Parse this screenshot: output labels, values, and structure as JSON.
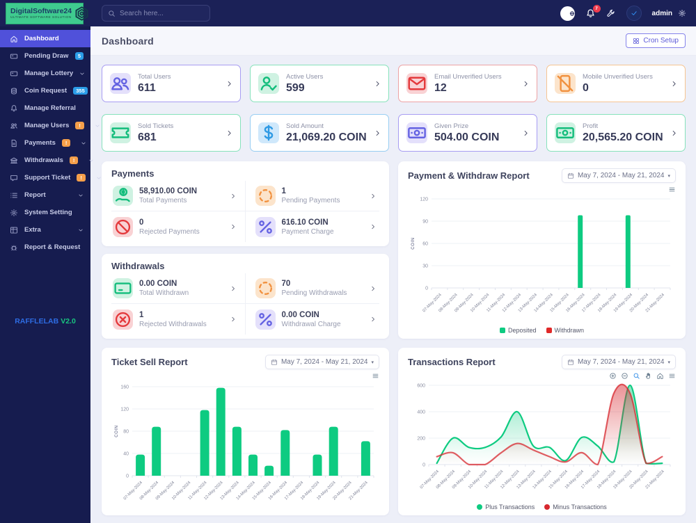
{
  "header": {
    "logo_title": "DigitalSoftware24",
    "logo_subtitle": "ULTIMATE SOFTWARE SOLUTION",
    "search_placeholder": "Search here...",
    "notification_count": "7",
    "user_name": "admin"
  },
  "sidebar": {
    "items": [
      {
        "label": "Dashboard",
        "icon": "home",
        "active": true
      },
      {
        "label": "Pending Draw",
        "icon": "card",
        "badge": "5",
        "badge_type": "info"
      },
      {
        "label": "Manage Lottery",
        "icon": "card",
        "chevron": true
      },
      {
        "label": "Coin Request",
        "icon": "coins",
        "badge": "355",
        "badge_type": "info"
      },
      {
        "label": "Manage Referral",
        "icon": "bell"
      },
      {
        "label": "Manage Users",
        "icon": "users",
        "badge": "!",
        "badge_type": "warn",
        "chevron": true
      },
      {
        "label": "Payments",
        "icon": "file",
        "badge": "!",
        "badge_type": "warn",
        "chevron": true
      },
      {
        "label": "Withdrawals",
        "icon": "bank",
        "badge": "!",
        "badge_type": "warn",
        "chevron": true
      },
      {
        "label": "Support Ticket",
        "icon": "chat",
        "badge": "!",
        "badge_type": "warn",
        "chevron": true
      },
      {
        "label": "Report",
        "icon": "list",
        "chevron": true
      },
      {
        "label": "System Setting",
        "icon": "gear"
      },
      {
        "label": "Extra",
        "icon": "grid",
        "chevron": true
      },
      {
        "label": "Report & Request",
        "icon": "bug"
      }
    ],
    "footer_brand": "RAFFLELAB",
    "footer_version": "V2.0"
  },
  "page": {
    "title": "Dashboard",
    "cron_button": "Cron Setup"
  },
  "stat_cards": [
    {
      "label": "Total Users",
      "value": "611",
      "icon": "users-group",
      "color": "purple"
    },
    {
      "label": "Active Users",
      "value": "599",
      "icon": "user-check",
      "color": "green"
    },
    {
      "label": "Email Unverified Users",
      "value": "12",
      "icon": "mail",
      "color": "red"
    },
    {
      "label": "Mobile Unverified Users",
      "value": "0",
      "icon": "phone-slash",
      "color": "orange"
    },
    {
      "label": "Sold Tickets",
      "value": "681",
      "icon": "ticket",
      "color": "green"
    },
    {
      "label": "Sold Amount",
      "value": "21,069.20 COIN",
      "icon": "dollar",
      "color": "blue"
    },
    {
      "label": "Given Prize",
      "value": "504.00 COIN",
      "icon": "cash",
      "color": "purple"
    },
    {
      "label": "Profit",
      "value": "20,565.20 COIN",
      "icon": "cash",
      "color": "green"
    }
  ],
  "payments_panel": {
    "title": "Payments",
    "items": [
      {
        "value": "58,910.00 COIN",
        "label": "Total Payments",
        "icon": "hand-dollar",
        "color": "green"
      },
      {
        "value": "1",
        "label": "Pending Payments",
        "icon": "spinner",
        "color": "orange"
      },
      {
        "value": "0",
        "label": "Rejected Payments",
        "icon": "ban",
        "color": "red"
      },
      {
        "value": "616.10 COIN",
        "label": "Payment Charge",
        "icon": "percent",
        "color": "purple"
      }
    ]
  },
  "withdrawals_panel": {
    "title": "Withdrawals",
    "items": [
      {
        "value": "0.00 COIN",
        "label": "Total Withdrawn",
        "icon": "wallet-card",
        "color": "green"
      },
      {
        "value": "70",
        "label": "Pending Withdrawals",
        "icon": "spinner",
        "color": "orange"
      },
      {
        "value": "1",
        "label": "Rejected Withdrawals",
        "icon": "circle-x",
        "color": "red"
      },
      {
        "value": "0.00 COIN",
        "label": "Withdrawal Charge",
        "icon": "percent",
        "color": "purple"
      }
    ]
  },
  "chart_data": [
    {
      "id": "payment_withdraw",
      "type": "bar",
      "title": "Payment & Withdraw Report",
      "date_range": "May 7, 2024 - May 21, 2024",
      "ylabel": "COIN",
      "ylim": [
        0,
        120
      ],
      "yticks": [
        120,
        90,
        60,
        30,
        0
      ],
      "grid": true,
      "legend_position": "bottom",
      "categories": [
        "07-May-2024",
        "08-May-2024",
        "09-May-2024",
        "10-May-2024",
        "11-May-2024",
        "12-May-2024",
        "13-May-2024",
        "14-May-2024",
        "15-May-2024",
        "16-May-2024",
        "17-May-2024",
        "18-May-2024",
        "19-May-2024",
        "20-May-2024",
        "21-May-2024"
      ],
      "series": [
        {
          "name": "Deposited",
          "color": "#0ecb81",
          "values": [
            0,
            0,
            0,
            0,
            0,
            0,
            0,
            0,
            0,
            98,
            0,
            0,
            98,
            0,
            0
          ]
        },
        {
          "name": "Withdrawn",
          "color": "#e02828",
          "values": [
            0,
            0,
            0,
            0,
            0,
            0,
            0,
            0,
            0,
            0,
            0,
            0,
            0,
            0,
            0
          ]
        }
      ]
    },
    {
      "id": "ticket_sell",
      "type": "bar",
      "title": "Ticket Sell Report",
      "date_range": "May 7, 2024 - May 21, 2024",
      "ylabel": "COIN",
      "ylim": [
        0,
        160
      ],
      "yticks": [
        160,
        120,
        80,
        40,
        0
      ],
      "grid": true,
      "legend_position": "none",
      "categories": [
        "07-May-2024",
        "08-May-2024",
        "09-May-2024",
        "10-May-2024",
        "11-May-2024",
        "12-May-2024",
        "13-May-2024",
        "14-May-2024",
        "15-May-2024",
        "16-May-2024",
        "17-May-2024",
        "18-May-2024",
        "19-May-2024",
        "20-May-2024",
        "21-May-2024"
      ],
      "series": [
        {
          "name": "Tickets Sold",
          "color": "#0ecb81",
          "values": [
            38,
            88,
            0,
            0,
            118,
            158,
            88,
            38,
            18,
            82,
            0,
            38,
            88,
            0,
            62
          ]
        }
      ]
    },
    {
      "id": "transactions",
      "type": "area",
      "title": "Transactions Report",
      "date_range": "May 7, 2024 - May 21, 2024",
      "ylabel": "",
      "ylim": [
        0,
        600
      ],
      "yticks": [
        600,
        400,
        200,
        0
      ],
      "grid": true,
      "legend_position": "bottom",
      "categories": [
        "07-May-2024",
        "08-May-2024",
        "09-May-2024",
        "10-May-2024",
        "11-May-2024",
        "12-May-2024",
        "13-May-2024",
        "14-May-2024",
        "15-May-2024",
        "16-May-2024",
        "17-May-2024",
        "18-May-2024",
        "19-May-2024",
        "20-May-2024",
        "21-May-2024"
      ],
      "series": [
        {
          "name": "Plus Transactions",
          "color": "#0ecb81",
          "values": [
            10,
            200,
            130,
            130,
            210,
            400,
            140,
            130,
            30,
            205,
            140,
            20,
            600,
            10,
            10
          ]
        },
        {
          "name": "Minus Transactions",
          "color": "#d7282f",
          "values": [
            60,
            90,
            0,
            0,
            90,
            160,
            110,
            60,
            20,
            90,
            0,
            540,
            540,
            10,
            60
          ]
        }
      ]
    }
  ]
}
